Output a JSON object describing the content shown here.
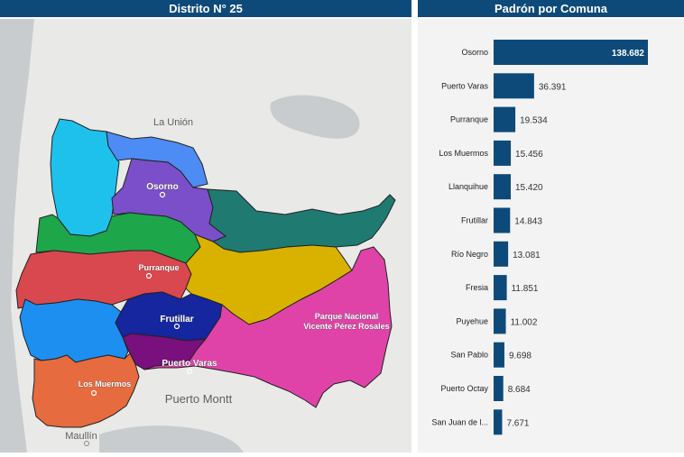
{
  "headers": {
    "left": "Distrito N° 25",
    "right": "Padrón por Comuna"
  },
  "map": {
    "towns": {
      "la_union": "La Unión",
      "puerto_montt": "Puerto Montt",
      "maullin": "Maullín"
    },
    "commune_labels": {
      "osorno": "Osorno",
      "purranque": "Purranque",
      "frutillar": "Frutillar",
      "puerto_varas": "Puerto Varas",
      "los_muermos": "Los Muermos",
      "parque_line1": "Parque Nacional",
      "parque_line2": "Vicente Pérez Rosales"
    },
    "colors": {
      "water": "#c9ccce",
      "land": "#e9e9e7",
      "osorno": "#7a4fc9",
      "san_pablo": "#1ec1ec",
      "rio_negro": "#4d8cf5",
      "puyehue": "#1f7a72",
      "purranque": "#1ea64a",
      "fresia": "#d9484e",
      "puerto_octay": "#d9b200",
      "los_muermos_w": "#1d8ff0",
      "frutillar": "#15269e",
      "llanquihue": "#7a0f7e",
      "puerto_varas": "#e043a8",
      "los_muermos_s": "#e66b3e"
    }
  },
  "chart_data": {
    "type": "bar",
    "orientation": "horizontal",
    "title": "Padrón por Comuna",
    "categories": [
      "Osorno",
      "Puerto Varas",
      "Purranque",
      "Los Muermos",
      "Llanquihue",
      "Frutillar",
      "Río Negro",
      "Fresia",
      "Puyehue",
      "San Pablo",
      "Puerto Octay",
      "San Juan de l..."
    ],
    "values": [
      138682,
      36391,
      19534,
      15456,
      15420,
      14843,
      13081,
      11851,
      11002,
      9698,
      8684,
      7671
    ],
    "value_labels": [
      "138.682",
      "36.391",
      "19.534",
      "15.456",
      "15.420",
      "14.843",
      "13.081",
      "11.851",
      "11.002",
      "9.698",
      "8.684",
      "7.671"
    ],
    "xlim": [
      0,
      138682
    ],
    "bar_color": "#0d4a7a"
  }
}
